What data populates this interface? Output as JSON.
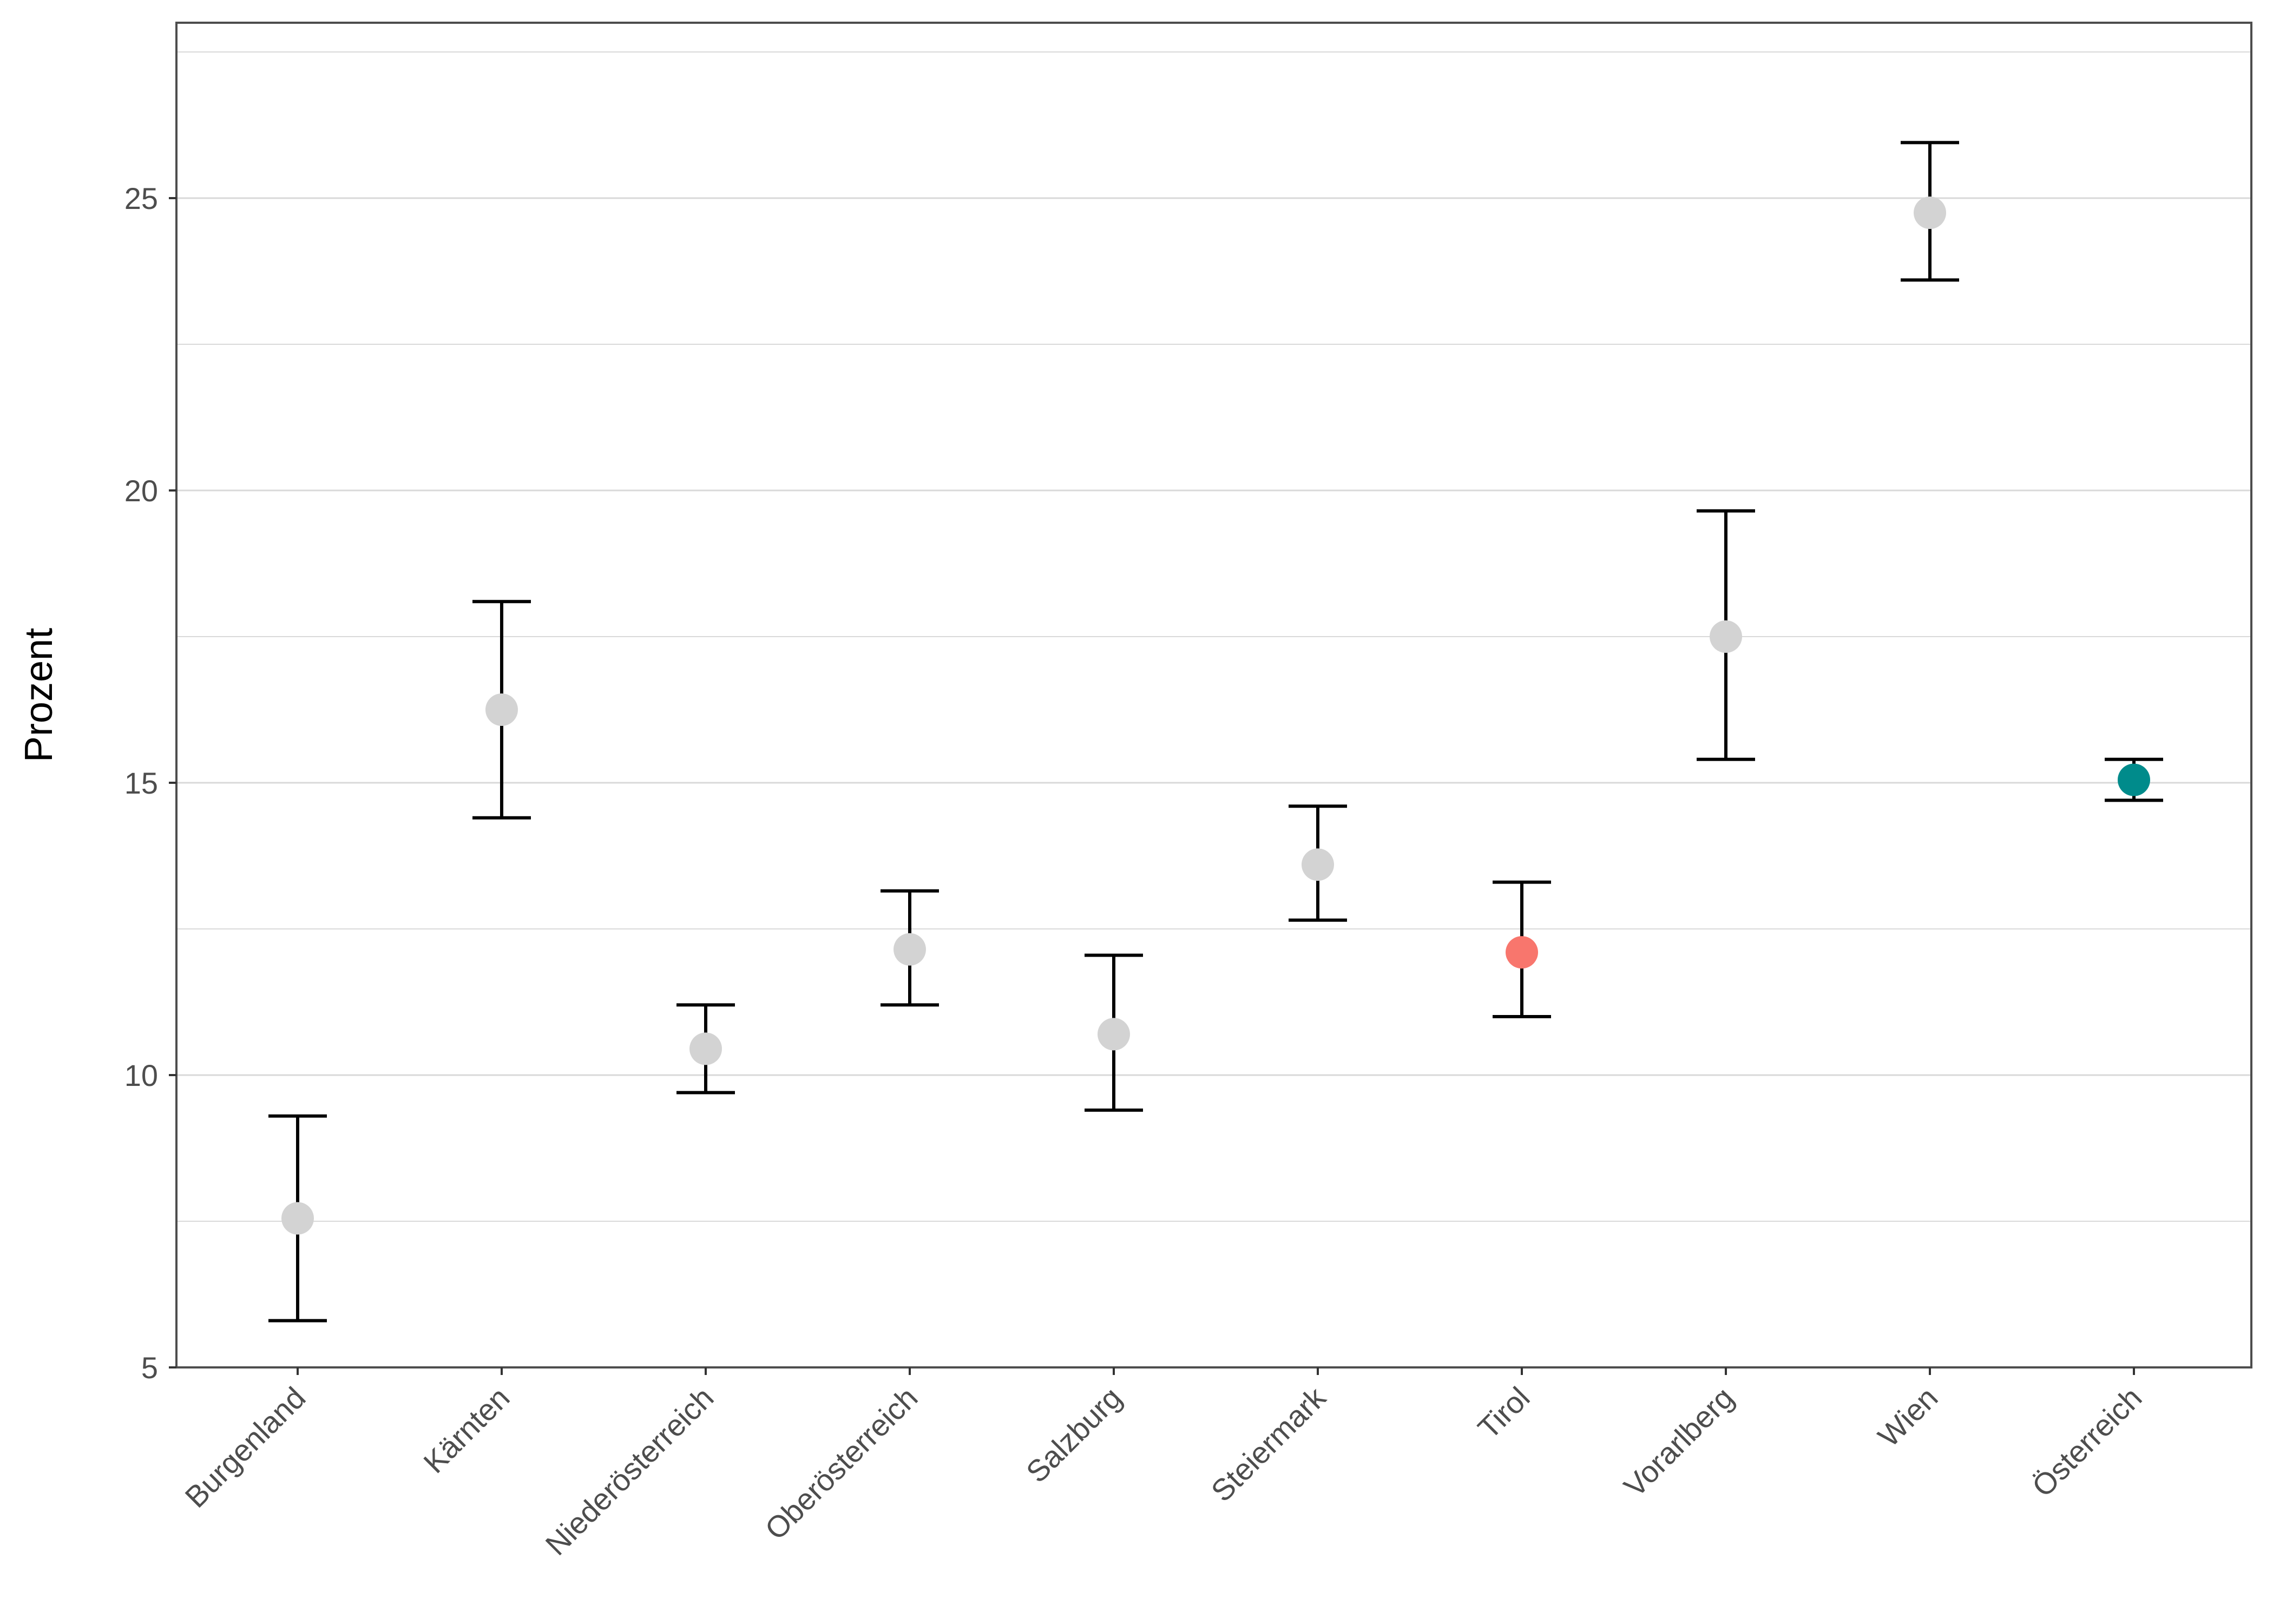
{
  "chart_data": {
    "type": "scatter",
    "subtype": "point-with-error-bars",
    "title": "",
    "xlabel": "",
    "ylabel": "Prozent",
    "ylim": [
      5,
      28
    ],
    "y_ticks": [
      5,
      10,
      15,
      20,
      25
    ],
    "grid": "horizontal major and minor",
    "legend": "none",
    "categories": [
      "Burgenland",
      "Kärnten",
      "Niederösterreich",
      "Oberösterreich",
      "Salzburg",
      "Steiermark",
      "Tirol",
      "Vorarlberg",
      "Wien",
      "Österreich"
    ],
    "values": [
      7.55,
      16.25,
      10.45,
      12.15,
      10.7,
      13.6,
      12.1,
      17.5,
      24.75,
      15.05
    ],
    "lower": [
      5.8,
      14.4,
      9.7,
      11.2,
      9.4,
      12.65,
      11.0,
      15.4,
      23.6,
      14.7
    ],
    "upper": [
      9.3,
      18.1,
      11.2,
      13.15,
      12.05,
      14.6,
      13.3,
      19.65,
      25.95,
      15.4
    ],
    "point_colors": [
      "#d3d3d3",
      "#d3d3d3",
      "#d3d3d3",
      "#d3d3d3",
      "#d3d3d3",
      "#d3d3d3",
      "#f8766d",
      "#d3d3d3",
      "#d3d3d3",
      "#008b8b"
    ],
    "errorbar_color": "#000000"
  }
}
